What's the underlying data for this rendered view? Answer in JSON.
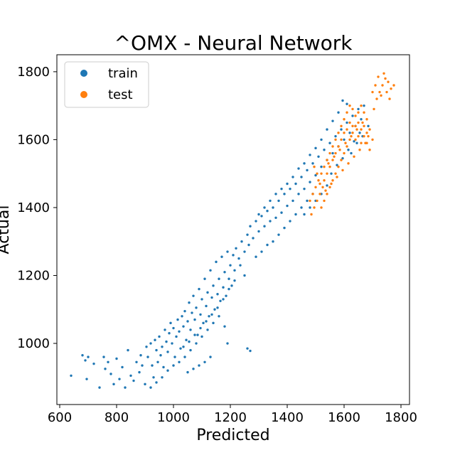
{
  "chart_data": {
    "type": "scatter",
    "title": "^OMX - Neural Network",
    "xlabel": "Predicted",
    "ylabel": "Actual",
    "xlim": [
      590,
      1830
    ],
    "ylim": [
      820,
      1850
    ],
    "xticks": [
      600,
      800,
      1000,
      1200,
      1400,
      1600,
      1800
    ],
    "yticks": [
      1000,
      1200,
      1400,
      1600,
      1800
    ],
    "grid": false,
    "legend_position": "top-left",
    "series": [
      {
        "name": "train",
        "color": "#1f77b4",
        "points": [
          [
            640,
            905
          ],
          [
            680,
            965
          ],
          [
            690,
            950
          ],
          [
            695,
            895
          ],
          [
            700,
            960
          ],
          [
            720,
            940
          ],
          [
            740,
            870
          ],
          [
            755,
            960
          ],
          [
            760,
            925
          ],
          [
            770,
            945
          ],
          [
            780,
            910
          ],
          [
            790,
            880
          ],
          [
            800,
            955
          ],
          [
            810,
            895
          ],
          [
            820,
            930
          ],
          [
            830,
            870
          ],
          [
            840,
            980
          ],
          [
            850,
            905
          ],
          [
            860,
            890
          ],
          [
            870,
            945
          ],
          [
            880,
            915
          ],
          [
            885,
            965
          ],
          [
            890,
            935
          ],
          [
            900,
            880
          ],
          [
            905,
            990
          ],
          [
            910,
            960
          ],
          [
            920,
            1000
          ],
          [
            925,
            935
          ],
          [
            930,
            900
          ],
          [
            935,
            1010
          ],
          [
            940,
            980
          ],
          [
            945,
            945
          ],
          [
            950,
            1020
          ],
          [
            955,
            965
          ],
          [
            960,
            990
          ],
          [
            965,
            930
          ],
          [
            970,
            1040
          ],
          [
            975,
            1005
          ],
          [
            980,
            975
          ],
          [
            985,
            1030
          ],
          [
            990,
            1060
          ],
          [
            995,
            1000
          ],
          [
            1000,
            1045
          ],
          [
            1005,
            960
          ],
          [
            1010,
            1020
          ],
          [
            1015,
            1070
          ],
          [
            1020,
            1035
          ],
          [
            1025,
            985
          ],
          [
            1030,
            1080
          ],
          [
            1035,
            1050
          ],
          [
            1040,
            1095
          ],
          [
            1045,
            1010
          ],
          [
            1050,
            1065
          ],
          [
            1055,
            1120
          ],
          [
            1060,
            1040
          ],
          [
            1065,
            1090
          ],
          [
            1070,
            1140
          ],
          [
            1075,
            1070
          ],
          [
            1080,
            1105
          ],
          [
            1085,
            1025
          ],
          [
            1090,
            1160
          ],
          [
            1095,
            1085
          ],
          [
            1100,
            1130
          ],
          [
            1105,
            1060
          ],
          [
            1110,
            1190
          ],
          [
            1115,
            1110
          ],
          [
            1120,
            1150
          ],
          [
            1125,
            1080
          ],
          [
            1130,
            1215
          ],
          [
            1135,
            1135
          ],
          [
            1140,
            1170
          ],
          [
            1145,
            1100
          ],
          [
            1150,
            1240
          ],
          [
            1155,
            1145
          ],
          [
            1160,
            1190
          ],
          [
            1165,
            1125
          ],
          [
            1170,
            1255
          ],
          [
            1175,
            1165
          ],
          [
            1180,
            1210
          ],
          [
            1185,
            1140
          ],
          [
            1190,
            1270
          ],
          [
            1195,
            1190
          ],
          [
            1200,
            1230
          ],
          [
            1205,
            1170
          ],
          [
            1210,
            1260
          ],
          [
            1215,
            1215
          ],
          [
            1220,
            1280
          ],
          [
            1230,
            1250
          ],
          [
            1240,
            1300
          ],
          [
            1250,
            1270
          ],
          [
            1260,
            1320
          ],
          [
            1265,
            1290
          ],
          [
            1270,
            1345
          ],
          [
            1280,
            1310
          ],
          [
            1290,
            1360
          ],
          [
            1300,
            1330
          ],
          [
            1310,
            1375
          ],
          [
            1320,
            1345
          ],
          [
            1330,
            1390
          ],
          [
            1340,
            1360
          ],
          [
            1350,
            1400
          ],
          [
            1360,
            1370
          ],
          [
            1370,
            1420
          ],
          [
            1380,
            1385
          ],
          [
            1390,
            1440
          ],
          [
            1400,
            1405
          ],
          [
            1410,
            1455
          ],
          [
            1420,
            1420
          ],
          [
            1430,
            1470
          ],
          [
            1440,
            1440
          ],
          [
            1450,
            1490
          ],
          [
            1460,
            1455
          ],
          [
            1470,
            1510
          ],
          [
            1480,
            1475
          ],
          [
            1490,
            1530
          ],
          [
            1500,
            1495
          ],
          [
            1510,
            1550
          ],
          [
            1520,
            1520
          ],
          [
            1530,
            1570
          ],
          [
            1540,
            1540
          ],
          [
            1550,
            1590
          ],
          [
            1560,
            1560
          ],
          [
            1570,
            1610
          ],
          [
            1580,
            1580
          ],
          [
            1590,
            1630
          ],
          [
            1600,
            1600
          ],
          [
            1610,
            1650
          ],
          [
            1620,
            1620
          ],
          [
            1630,
            1670
          ],
          [
            1640,
            1640
          ],
          [
            1650,
            1690
          ],
          [
            1660,
            1660
          ],
          [
            1670,
            1700
          ],
          [
            1595,
            1715
          ],
          [
            1610,
            1705
          ],
          [
            1580,
            1680
          ],
          [
            1560,
            1655
          ],
          [
            1540,
            1630
          ],
          [
            1520,
            1600
          ],
          [
            1500,
            1575
          ],
          [
            1480,
            1555
          ],
          [
            1460,
            1530
          ],
          [
            1440,
            1515
          ],
          [
            1420,
            1490
          ],
          [
            1400,
            1470
          ],
          [
            1380,
            1455
          ],
          [
            1360,
            1440
          ],
          [
            1340,
            1420
          ],
          [
            1320,
            1400
          ],
          [
            1300,
            1380
          ],
          [
            1260,
            985
          ],
          [
            1270,
            978
          ],
          [
            1190,
            1000
          ],
          [
            1180,
            1050
          ],
          [
            1160,
            1080
          ],
          [
            1140,
            1060
          ],
          [
            1120,
            1040
          ],
          [
            1100,
            1020
          ],
          [
            1080,
            1000
          ],
          [
            1060,
            980
          ],
          [
            1040,
            960
          ],
          [
            1020,
            945
          ],
          [
            1000,
            935
          ],
          [
            980,
            920
          ],
          [
            960,
            900
          ],
          [
            940,
            885
          ],
          [
            920,
            870
          ],
          [
            1130,
            960
          ],
          [
            1110,
            945
          ],
          [
            1090,
            935
          ],
          [
            1070,
            925
          ],
          [
            1050,
            915
          ],
          [
            1250,
            1200
          ],
          [
            1235,
            1230
          ],
          [
            1215,
            1185
          ],
          [
            1195,
            1160
          ],
          [
            1175,
            1130
          ],
          [
            1155,
            1105
          ],
          [
            1135,
            1085
          ],
          [
            1115,
            1065
          ],
          [
            1095,
            1045
          ],
          [
            1075,
            1025
          ],
          [
            1055,
            1005
          ],
          [
            1035,
            990
          ],
          [
            1460,
            1380
          ],
          [
            1480,
            1400
          ],
          [
            1500,
            1420
          ],
          [
            1520,
            1440
          ],
          [
            1540,
            1465
          ],
          [
            1490,
            1440
          ],
          [
            1470,
            1420
          ],
          [
            1450,
            1400
          ],
          [
            1430,
            1380
          ],
          [
            1410,
            1360
          ],
          [
            1390,
            1340
          ],
          [
            1370,
            1320
          ],
          [
            1350,
            1300
          ],
          [
            1330,
            1290
          ],
          [
            1310,
            1270
          ],
          [
            1290,
            1255
          ],
          [
            1625,
            1560
          ],
          [
            1645,
            1590
          ],
          [
            1665,
            1610
          ],
          [
            1685,
            1640
          ],
          [
            1555,
            1500
          ],
          [
            1575,
            1525
          ],
          [
            1595,
            1545
          ],
          [
            1615,
            1570
          ],
          [
            1635,
            1595
          ],
          [
            1655,
            1620
          ]
        ]
      },
      {
        "name": "test",
        "color": "#ff7f0e",
        "points": [
          [
            1480,
            1420
          ],
          [
            1490,
            1440
          ],
          [
            1500,
            1460
          ],
          [
            1510,
            1480
          ],
          [
            1520,
            1500
          ],
          [
            1530,
            1520
          ],
          [
            1540,
            1540
          ],
          [
            1550,
            1560
          ],
          [
            1560,
            1580
          ],
          [
            1570,
            1600
          ],
          [
            1580,
            1620
          ],
          [
            1590,
            1640
          ],
          [
            1600,
            1660
          ],
          [
            1610,
            1680
          ],
          [
            1620,
            1700
          ],
          [
            1630,
            1690
          ],
          [
            1640,
            1670
          ],
          [
            1650,
            1650
          ],
          [
            1660,
            1630
          ],
          [
            1670,
            1610
          ],
          [
            1680,
            1590
          ],
          [
            1690,
            1570
          ],
          [
            1700,
            1600
          ],
          [
            1690,
            1630
          ],
          [
            1680,
            1660
          ],
          [
            1670,
            1680
          ],
          [
            1660,
            1700
          ],
          [
            1650,
            1680
          ],
          [
            1640,
            1640
          ],
          [
            1630,
            1620
          ],
          [
            1620,
            1600
          ],
          [
            1610,
            1580
          ],
          [
            1600,
            1560
          ],
          [
            1590,
            1540
          ],
          [
            1580,
            1520
          ],
          [
            1570,
            1500
          ],
          [
            1560,
            1480
          ],
          [
            1550,
            1460
          ],
          [
            1540,
            1440
          ],
          [
            1530,
            1420
          ],
          [
            1520,
            1400
          ],
          [
            1545,
            1530
          ],
          [
            1565,
            1550
          ],
          [
            1585,
            1570
          ],
          [
            1605,
            1590
          ],
          [
            1625,
            1610
          ],
          [
            1645,
            1630
          ],
          [
            1665,
            1650
          ],
          [
            1685,
            1610
          ],
          [
            1675,
            1590
          ],
          [
            1655,
            1570
          ],
          [
            1635,
            1550
          ],
          [
            1615,
            1530
          ],
          [
            1595,
            1510
          ],
          [
            1575,
            1490
          ],
          [
            1555,
            1470
          ],
          [
            1535,
            1450
          ],
          [
            1515,
            1470
          ],
          [
            1505,
            1500
          ],
          [
            1495,
            1520
          ],
          [
            1705,
            1690
          ],
          [
            1715,
            1720
          ],
          [
            1725,
            1740
          ],
          [
            1735,
            1760
          ],
          [
            1745,
            1780
          ],
          [
            1755,
            1770
          ],
          [
            1765,
            1750
          ],
          [
            1775,
            1760
          ],
          [
            1740,
            1795
          ],
          [
            1720,
            1785
          ],
          [
            1710,
            1760
          ],
          [
            1700,
            1740
          ],
          [
            1730,
            1730
          ],
          [
            1750,
            1740
          ],
          [
            1760,
            1720
          ],
          [
            1610,
            1630
          ],
          [
            1620,
            1650
          ],
          [
            1630,
            1640
          ],
          [
            1640,
            1600
          ],
          [
            1650,
            1610
          ],
          [
            1660,
            1590
          ],
          [
            1670,
            1640
          ],
          [
            1680,
            1620
          ],
          [
            1600,
            1620
          ],
          [
            1590,
            1600
          ],
          [
            1580,
            1580
          ],
          [
            1570,
            1560
          ],
          [
            1560,
            1540
          ],
          [
            1550,
            1520
          ],
          [
            1540,
            1500
          ],
          [
            1530,
            1480
          ],
          [
            1525,
            1460
          ],
          [
            1515,
            1440
          ],
          [
            1505,
            1420
          ],
          [
            1495,
            1400
          ],
          [
            1485,
            1380
          ]
        ]
      }
    ]
  }
}
